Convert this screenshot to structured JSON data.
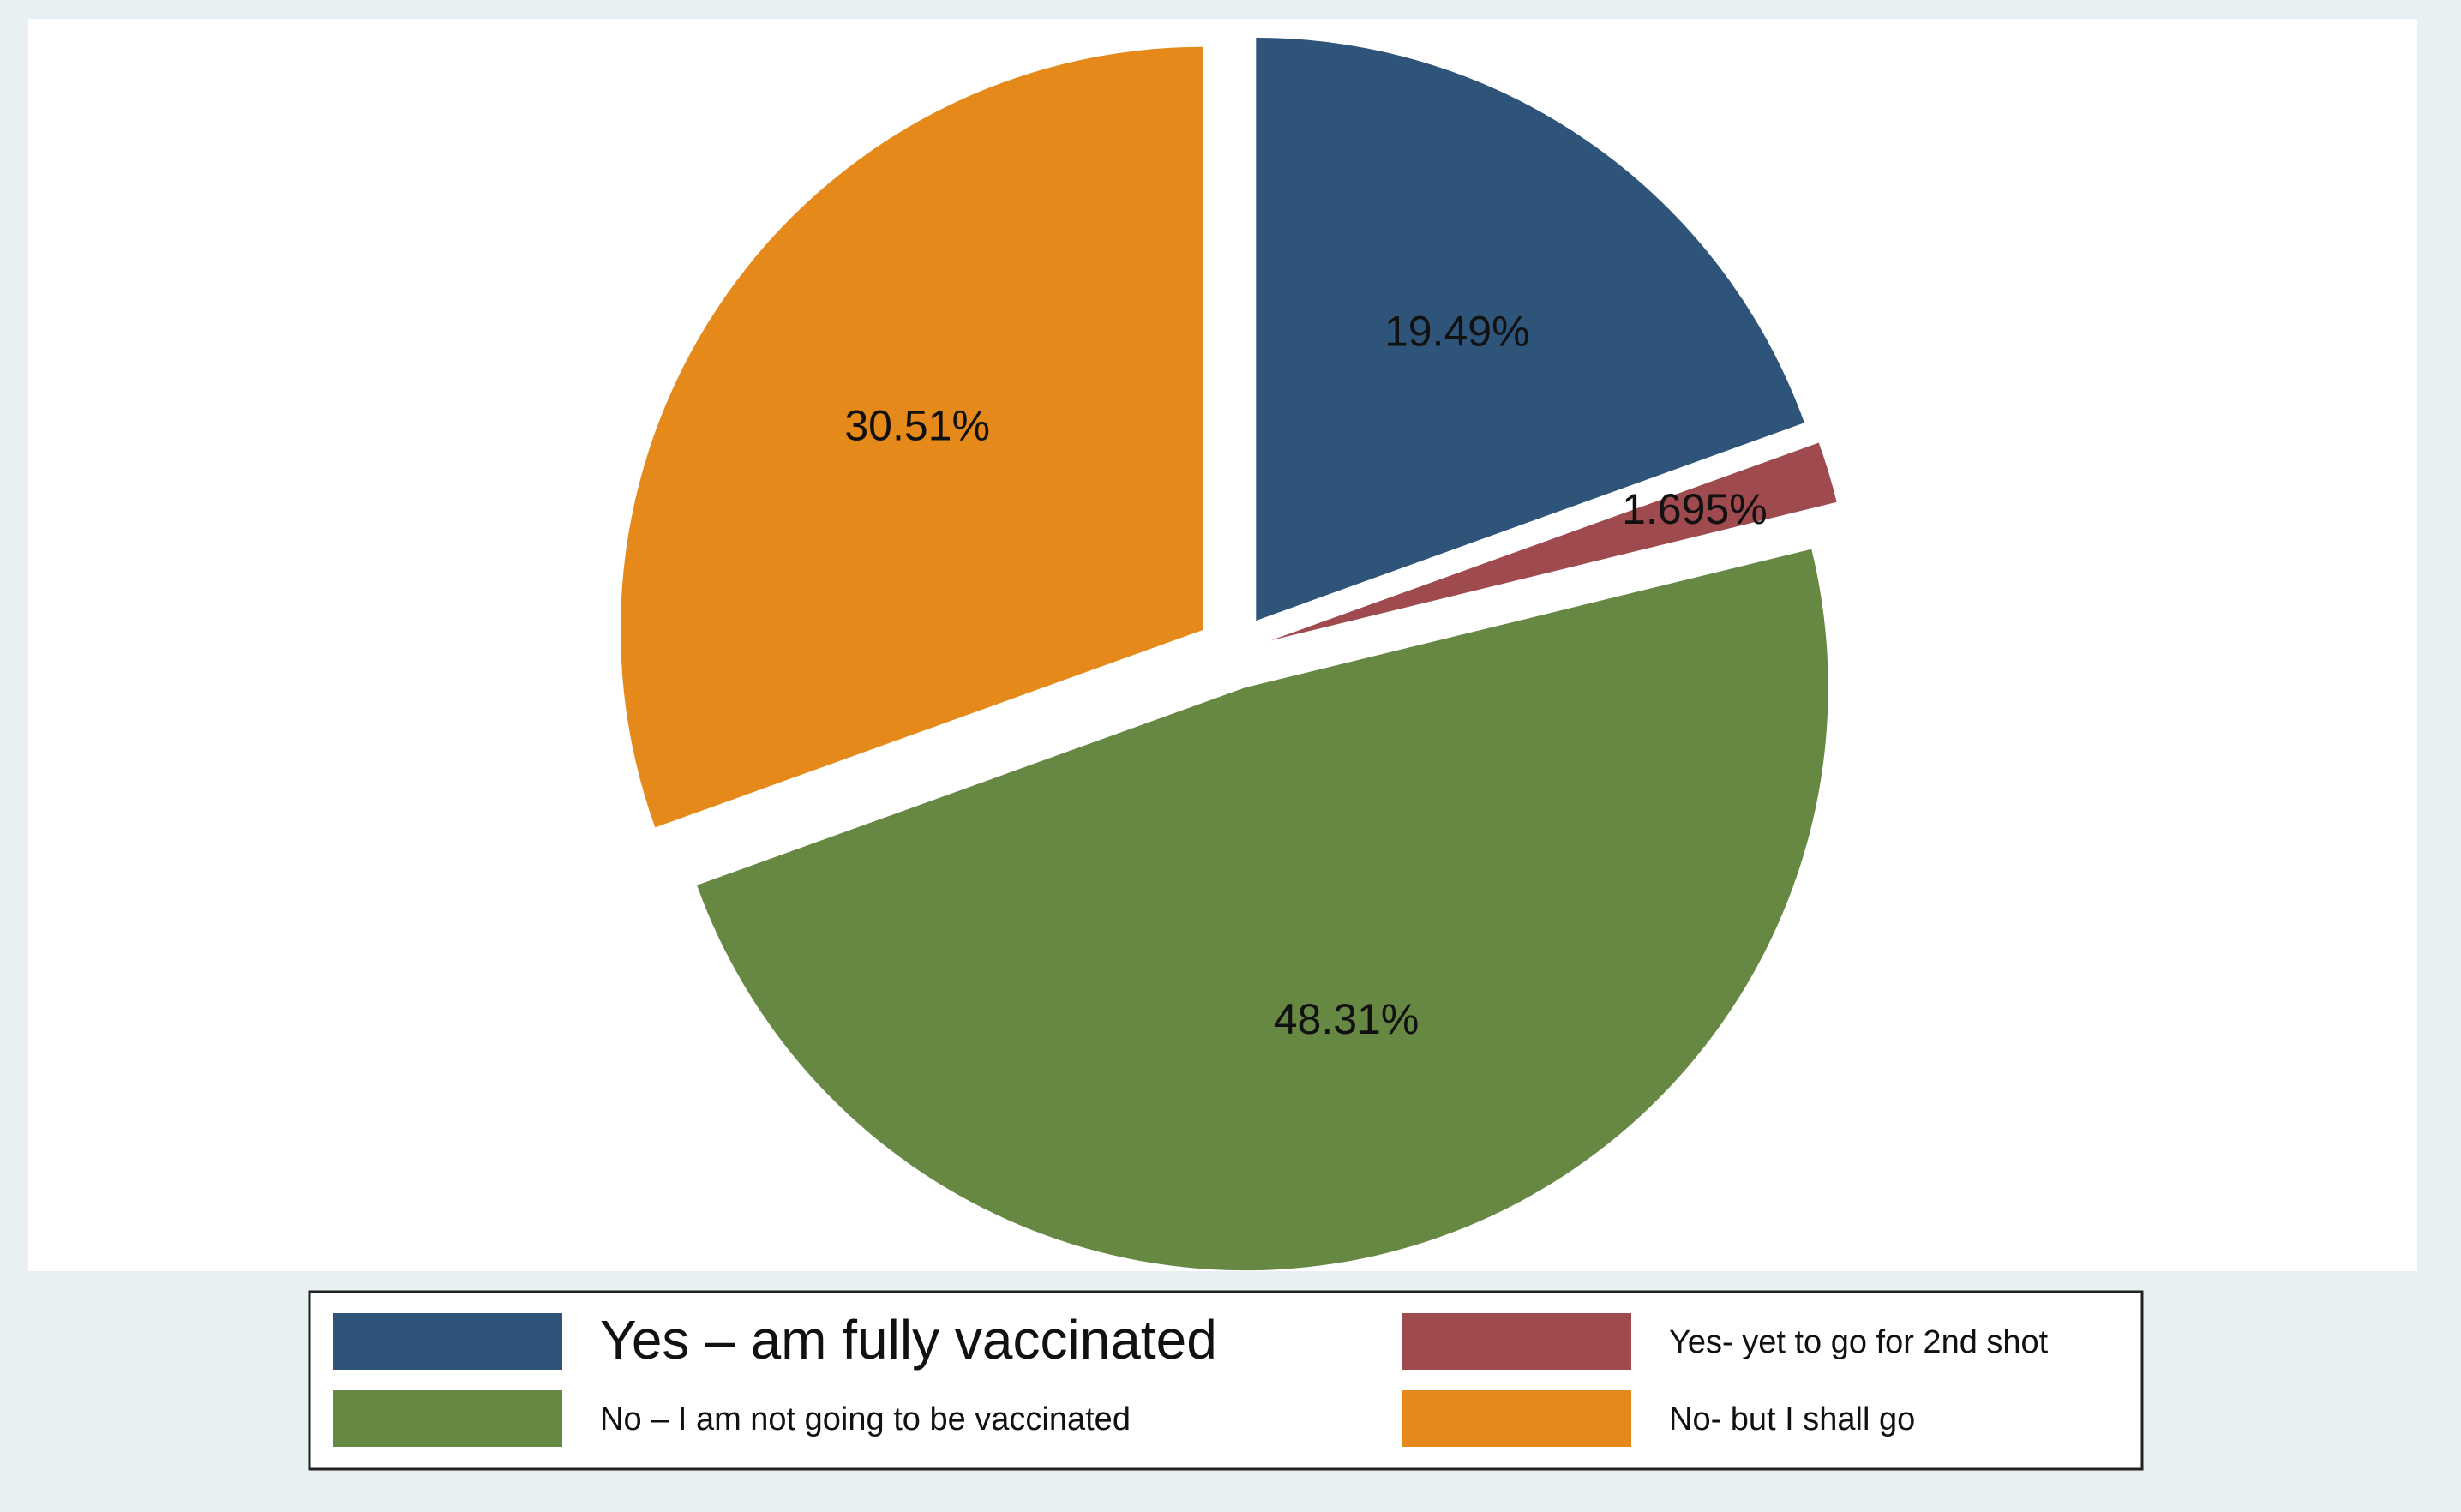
{
  "chart_data": {
    "type": "pie",
    "categories": [
      "Yes – am fully vaccinated",
      "Yes- yet to go for 2nd shot",
      "No – I am not going to be vaccinated",
      "No- but I shall go"
    ],
    "values": [
      19.49,
      1.695,
      48.31,
      30.51
    ],
    "value_labels": [
      "19.49%",
      "1.695%",
      "48.31%",
      "30.51%"
    ],
    "colors": [
      "#2e5479",
      "#9e4a4e",
      "#678843",
      "#e58a1a"
    ],
    "legend": "bottom"
  }
}
